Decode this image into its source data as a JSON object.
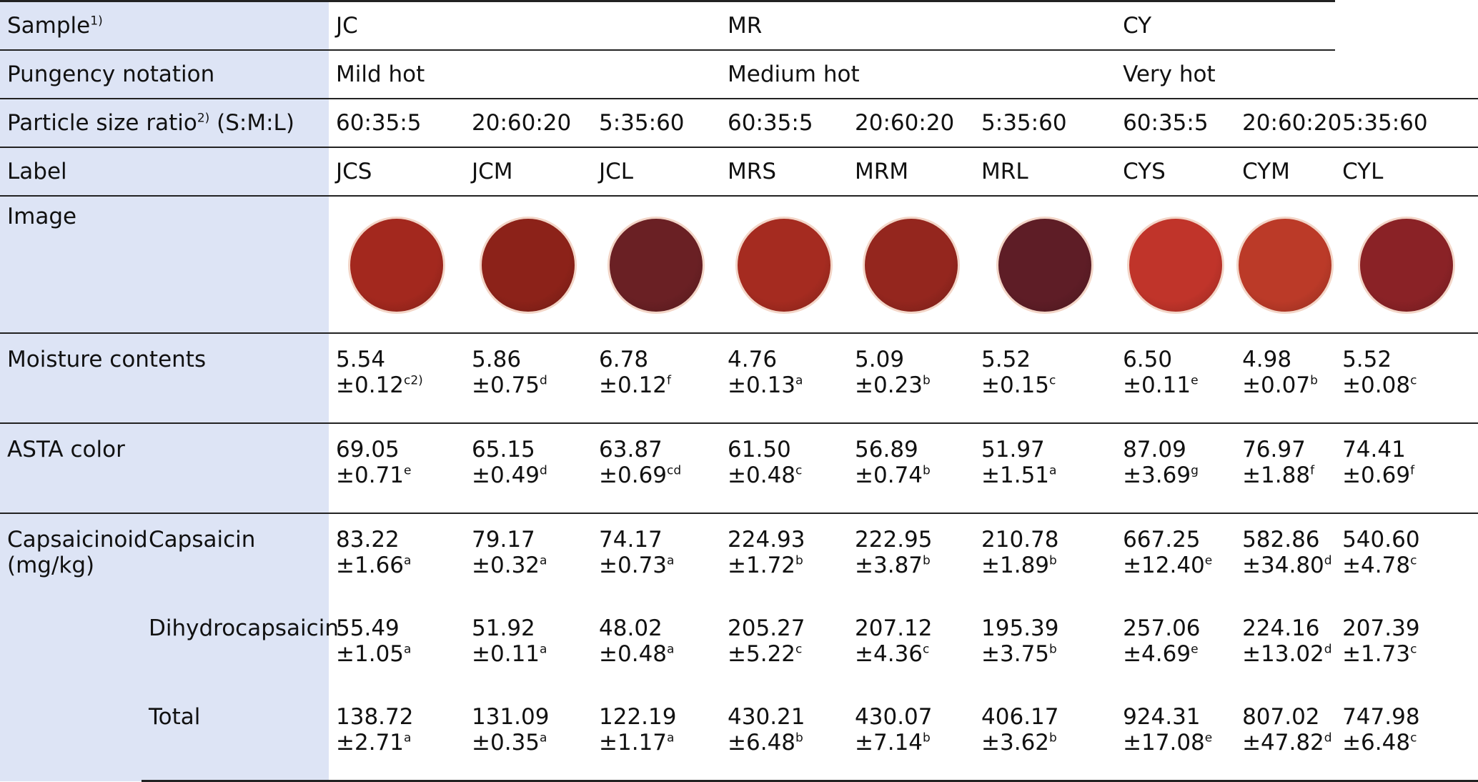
{
  "header": {
    "sample_label": "Sample",
    "sample_sup": "1)",
    "pungency_label": "Pungency notation",
    "particle_label_a": "Particle size ratio",
    "particle_sup": "2)",
    "particle_label_b": " (S:M:L)",
    "label_label": "Label",
    "image_label": "Image",
    "moisture_label": "Moisture contents",
    "asta_label": "ASTA color",
    "capsaicinoid_label_1": "Capsaicinoid",
    "capsaicinoid_label_2": "(mg/kg)",
    "capsaicin_label": "Capsaicin",
    "dihydro_label": "Dihydrocapsaicin",
    "total_label": "Total"
  },
  "groups": [
    {
      "sample": "JC",
      "pungency": "Mild hot"
    },
    {
      "sample": "MR",
      "pungency": "Medium hot"
    },
    {
      "sample": "CY",
      "pungency": "Very hot"
    }
  ],
  "columns": [
    {
      "ratio": "60:35:5",
      "label": "JCS",
      "disc_color": "#a3281e",
      "moisture": "5.54",
      "moisture_sd": "±0.12",
      "moisture_sup": "c2)",
      "asta": "69.05",
      "asta_sd": "±0.71",
      "asta_sup": "e",
      "cap": "83.22",
      "cap_sd": "±1.66",
      "cap_sup": "a",
      "dih": "55.49",
      "dih_sd": "±1.05",
      "dih_sup": "a",
      "tot": "138.72",
      "tot_sd": "±2.71",
      "tot_sup": "a"
    },
    {
      "ratio": "20:60:20",
      "label": "JCM",
      "disc_color": "#8c2219",
      "moisture": "5.86",
      "moisture_sd": "±0.75",
      "moisture_sup": "d",
      "asta": "65.15",
      "asta_sd": "±0.49",
      "asta_sup": "d",
      "cap": "79.17",
      "cap_sd": "±0.32",
      "cap_sup": "a",
      "dih": "51.92",
      "dih_sd": "±0.11",
      "dih_sup": "a",
      "tot": "131.09",
      "tot_sd": "±0.35",
      "tot_sup": "a"
    },
    {
      "ratio": "5:35:60",
      "label": "JCL",
      "disc_color": "#6a2024",
      "moisture": "6.78",
      "moisture_sd": "±0.12",
      "moisture_sup": "f",
      "asta": "63.87",
      "asta_sd": "±0.69",
      "asta_sup": "cd",
      "cap": "74.17",
      "cap_sd": "±0.73",
      "cap_sup": "a",
      "dih": "48.02",
      "dih_sd": "±0.48",
      "dih_sup": "a",
      "tot": "122.19",
      "tot_sd": "±1.17",
      "tot_sup": "a"
    },
    {
      "ratio": "60:35:5",
      "label": "MRS",
      "disc_color": "#a52b20",
      "moisture": "4.76",
      "moisture_sd": "±0.13",
      "moisture_sup": "a",
      "asta": "61.50",
      "asta_sd": "±0.48",
      "asta_sup": "c",
      "cap": "224.93",
      "cap_sd": "±1.72",
      "cap_sup": "b",
      "dih": "205.27",
      "dih_sd": "±5.22",
      "dih_sup": "c",
      "tot": "430.21",
      "tot_sd": "±6.48",
      "tot_sup": "b"
    },
    {
      "ratio": "20:60:20",
      "label": "MRM",
      "disc_color": "#94261e",
      "moisture": "5.09",
      "moisture_sd": "±0.23",
      "moisture_sup": "b",
      "asta": "56.89",
      "asta_sd": "±0.74",
      "asta_sup": "b",
      "cap": "222.95",
      "cap_sd": "±3.87",
      "cap_sup": "b",
      "dih": "207.12",
      "dih_sd": "±4.36",
      "dih_sup": "c",
      "tot": "430.07",
      "tot_sd": "±7.14",
      "tot_sup": "b"
    },
    {
      "ratio": "5:35:60",
      "label": "MRL",
      "disc_color": "#5e1d26",
      "moisture": "5.52",
      "moisture_sd": "±0.15",
      "moisture_sup": "c",
      "asta": "51.97",
      "asta_sd": "±1.51",
      "asta_sup": "a",
      "cap": "210.78",
      "cap_sd": "±1.89",
      "cap_sup": "b",
      "dih": "195.39",
      "dih_sd": "±3.75",
      "dih_sup": "b",
      "tot": "406.17",
      "tot_sd": "±3.62",
      "tot_sup": "b"
    },
    {
      "ratio": "60:35:5",
      "label": "CYS",
      "disc_color": "#c0342a",
      "moisture": "6.50",
      "moisture_sd": "±0.11",
      "moisture_sup": "e",
      "asta": "87.09",
      "asta_sd": "±3.69",
      "asta_sup": "g",
      "cap": "667.25",
      "cap_sd": "±12.40",
      "cap_sup": "e",
      "dih": "257.06",
      "dih_sd": "±4.69",
      "dih_sup": "e",
      "tot": "924.31",
      "tot_sd": "±17.08",
      "tot_sup": "e"
    },
    {
      "ratio": "20:60:20",
      "label": "CYM",
      "disc_color": "#bb3a28",
      "moisture": "4.98",
      "moisture_sd": "±0.07",
      "moisture_sup": "b",
      "asta": "76.97",
      "asta_sd": "±1.88",
      "asta_sup": "f",
      "cap": "582.86",
      "cap_sd": "±34.80",
      "cap_sup": "d",
      "dih": "224.16",
      "dih_sd": "±13.02",
      "dih_sup": "d",
      "tot": "807.02",
      "tot_sd": "±47.82",
      "tot_sup": "d"
    },
    {
      "ratio": "5:35:60",
      "label": "CYL",
      "disc_color": "#8a2226",
      "moisture": "5.52",
      "moisture_sd": "±0.08",
      "moisture_sup": "c",
      "asta": "74.41",
      "asta_sd": "±0.69",
      "asta_sup": "f",
      "cap": "540.60",
      "cap_sd": "±4.78",
      "cap_sup": "c",
      "dih": "207.39",
      "dih_sd": "±1.73",
      "dih_sup": "c",
      "tot": "747.98",
      "tot_sd": "±6.48",
      "tot_sup": "c"
    }
  ]
}
